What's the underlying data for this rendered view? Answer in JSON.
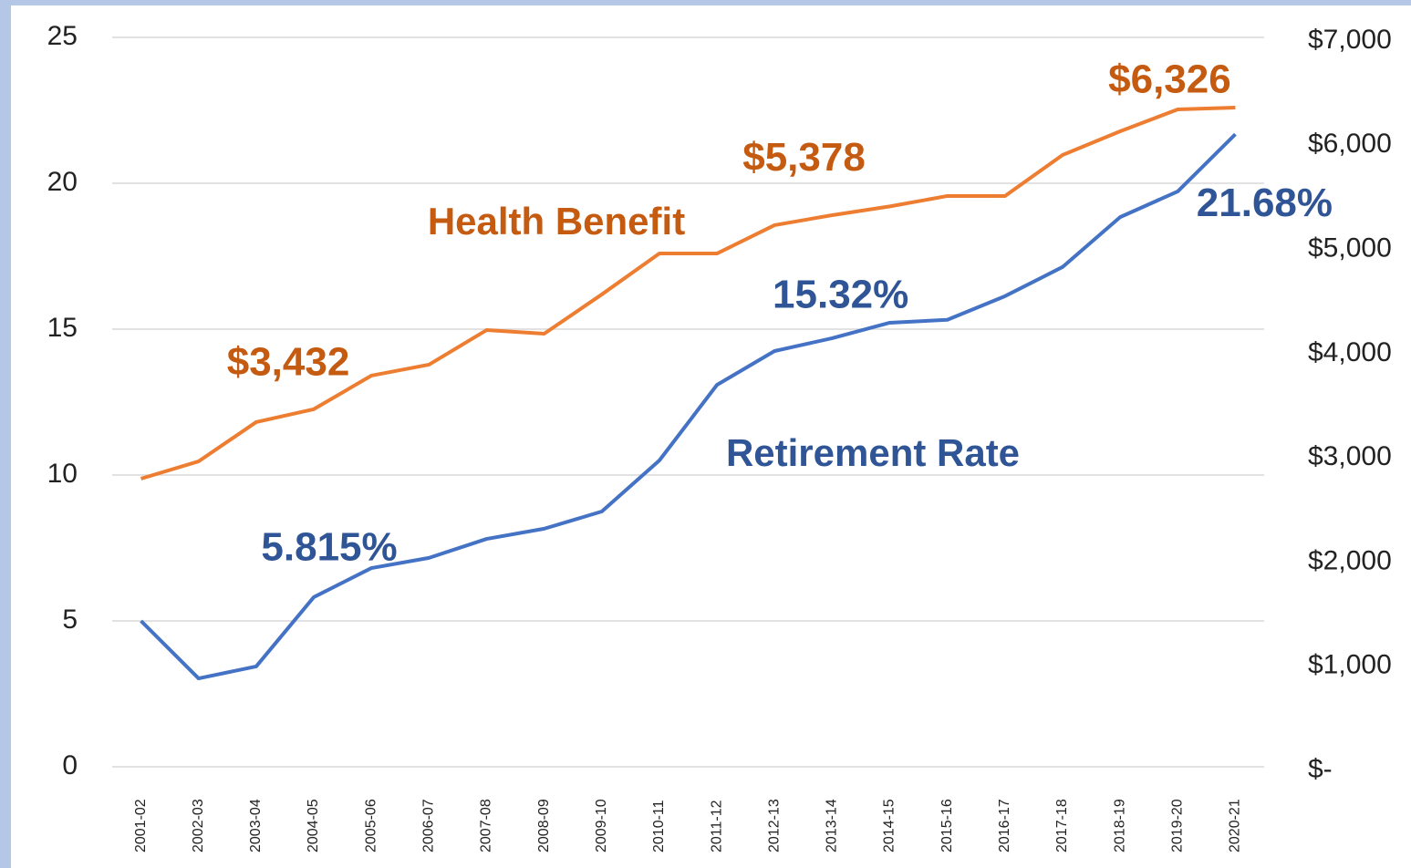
{
  "chart_data": {
    "type": "line",
    "categories": [
      "2001-02",
      "2002-03",
      "2003-04",
      "2004-05",
      "2005-06",
      "2006-07",
      "2007-08",
      "2008-09",
      "2009-10",
      "2010-11",
      "2011-12",
      "2012-13",
      "2013-14",
      "2014-15",
      "2015-16",
      "2016-17",
      "2017-18",
      "2018-19",
      "2019-20",
      "2020-21"
    ],
    "series": [
      {
        "name": "Health Benefit",
        "color": "#ed7d31",
        "label_color": "#c55a11",
        "axis": "y2",
        "values": [
          2765,
          2931,
          3308,
          3432,
          3754,
          3859,
          4191,
          4156,
          4533,
          4926,
          4926,
          5198,
          5294,
          5378,
          5478,
          5478,
          5871,
          6099,
          6309,
          6326
        ],
        "value_labels": [
          null,
          null,
          null,
          "$3,432",
          null,
          null,
          null,
          null,
          null,
          null,
          null,
          null,
          null,
          "$5,378",
          null,
          null,
          null,
          null,
          null,
          "$6,326"
        ]
      },
      {
        "name": "Retirement Rate",
        "color": "#4472c4",
        "label_color": "#2f5597",
        "values": [
          5.0,
          3.03,
          3.44,
          5.815,
          6.81,
          7.16,
          7.81,
          8.16,
          8.75,
          10.5,
          13.09,
          14.25,
          14.69,
          15.22,
          15.32,
          16.13,
          17.13,
          18.84,
          19.72,
          21.68
        ],
        "value_labels": [
          null,
          null,
          null,
          "5.815%",
          null,
          null,
          null,
          null,
          null,
          null,
          null,
          null,
          null,
          null,
          "15.32%",
          null,
          null,
          null,
          null,
          "21.68%"
        ]
      }
    ],
    "ylim": [
      0,
      25
    ],
    "yticks": [
      0,
      5,
      10,
      15,
      20,
      25
    ],
    "y2lim": [
      0,
      7000
    ],
    "y2ticks": [
      {
        "value": 0,
        "label": "$-"
      },
      {
        "value": 1000,
        "label": "$1,000"
      },
      {
        "value": 2000,
        "label": "$2,000"
      },
      {
        "value": 3000,
        "label": "$3,000"
      },
      {
        "value": 4000,
        "label": "$4,000"
      },
      {
        "value": 5000,
        "label": "$5,000"
      },
      {
        "value": 6000,
        "label": "$6,000"
      },
      {
        "value": 7000,
        "label": "$7,000"
      }
    ],
    "grid": true
  }
}
